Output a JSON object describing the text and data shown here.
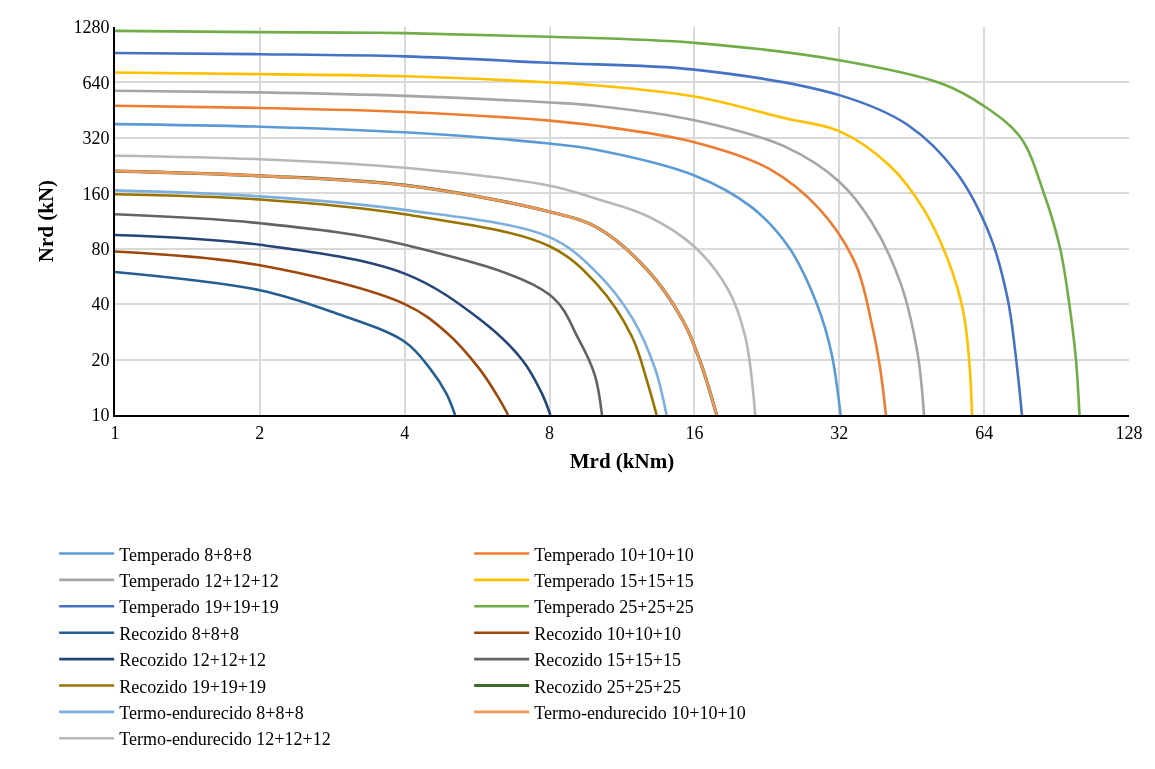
{
  "chart_data": {
    "type": "line",
    "xlabel": "Mrd (kNm)",
    "ylabel": "Nrd (kN)",
    "log": "xy",
    "grid": true,
    "legend": "bottom",
    "marker": "none",
    "line_style": "solid",
    "xlim": [
      1,
      128
    ],
    "xticks": [
      1,
      2,
      4,
      8,
      16,
      32,
      64,
      128
    ],
    "ylim": [
      10,
      1280
    ],
    "yticks": [
      10,
      20,
      40,
      80,
      160,
      320,
      640,
      1280
    ],
    "series": [
      {
        "name": "Temperado 8+8+8",
        "color": "#5b9bd5",
        "x": [
          1,
          2,
          4,
          8,
          10.05,
          16,
          21.0,
          25.2,
          28.8,
          30.8,
          32.2
        ],
        "values": [
          380,
          368,
          343,
          298,
          275,
          200,
          135,
          80.7,
          39.6,
          21.9,
          10
        ]
      },
      {
        "name": "Temperado 10+10+10",
        "color": "#ed7d31",
        "x": [
          1,
          2,
          4,
          8,
          10.05,
          16,
          22.9,
          29.2,
          34.6,
          37.4,
          38.9,
          40.0
        ],
        "values": [
          478,
          465,
          442,
          397,
          372,
          303,
          217,
          130,
          66,
          31,
          18,
          10
        ]
      },
      {
        "name": "Temperado 12+12+12",
        "color": "#a5a5a5",
        "x": [
          1,
          2,
          4,
          8,
          10.05,
          16,
          24.8,
          32,
          37.4,
          42.9,
          46.5,
          48.0
        ],
        "values": [
          577,
          565,
          541,
          498,
          477,
          399,
          285,
          185,
          111,
          52,
          21.9,
          10
        ]
      },
      {
        "name": "Temperado 15+15+15",
        "color": "#ffc000",
        "x": [
          1,
          2,
          4,
          8,
          10.05,
          16,
          24.8,
          32,
          40.8,
          48.0,
          53.9,
          57.9,
          59.6,
          60.4
        ],
        "values": [
          725,
          710,
          691,
          640,
          616,
          537,
          408,
          348,
          225,
          130,
          68.8,
          36.6,
          19.5,
          10
        ]
      },
      {
        "name": "Temperado 19+19+19",
        "color": "#4472c4",
        "x": [
          1,
          2,
          4,
          8,
          16,
          32,
          44.4,
          56.0,
          65.8,
          71.6,
          74.3,
          76.7
        ],
        "values": [
          924,
          911,
          886,
          818,
          751,
          546,
          376,
          208,
          94.5,
          42.9,
          21.9,
          10
        ]
      },
      {
        "name": "Temperado 25+25+25",
        "color": "#70ad47",
        "x": [
          1,
          2,
          4,
          8,
          16,
          32,
          52.5,
          64,
          76.2,
          85.1,
          92.0,
          96.2,
          99.3,
          101
        ],
        "values": [
          1220,
          1200,
          1185,
          1133,
          1050,
          845,
          628,
          476,
          321,
          161,
          80.9,
          40,
          20,
          10
        ]
      },
      {
        "name": "Recozido 8+8+8",
        "color": "#255e91",
        "x": [
          1,
          2,
          2.81,
          4,
          4.52,
          4.88,
          5.09
        ],
        "values": [
          59.8,
          47.6,
          36.5,
          25,
          17.8,
          13.1,
          10
        ]
      },
      {
        "name": "Recozido 10+10+10",
        "color": "#9e480e",
        "x": [
          1,
          2,
          4,
          4.89,
          5.72,
          6.29,
          6.56
        ],
        "values": [
          77.3,
          65,
          40,
          28,
          17.8,
          12.2,
          10
        ]
      },
      {
        "name": "Recozido 12+12+12",
        "color": "#264478",
        "x": [
          1,
          2,
          4,
          5.72,
          7.02,
          7.71,
          8.03
        ],
        "values": [
          95,
          84,
          58.6,
          33.2,
          19.9,
          13.1,
          10
        ]
      },
      {
        "name": "Recozido 15+15+15",
        "color": "#636363",
        "x": [
          1,
          2,
          4,
          8,
          9.18,
          9.93,
          10.28
        ],
        "values": [
          123,
          110,
          84,
          45,
          26,
          16.5,
          10
        ]
      },
      {
        "name": "Recozido 19+19+19",
        "color": "#997300",
        "x": [
          1,
          2,
          4,
          8,
          10.05,
          11.86,
          12.8,
          13.35
        ],
        "values": [
          158,
          148,
          123,
          82.5,
          51,
          26.7,
          14.8,
          10
        ]
      },
      {
        "name": "Recozido 25+25+25",
        "color": "#43682b",
        "x": [
          1,
          2,
          4,
          8,
          10.05,
          12.8,
          15.15,
          16.45,
          17.8
        ],
        "values": [
          211,
          199,
          177,
          127,
          104,
          61,
          32.5,
          19.5,
          10
        ]
      },
      {
        "name": "Termo-endurecido 8+8+8",
        "color": "#7cafdd",
        "x": [
          1,
          2,
          4,
          8,
          10.05,
          11.86,
          13.24,
          14.0
        ],
        "values": [
          166,
          154,
          130,
          92.5,
          59,
          33.9,
          18,
          10
        ]
      },
      {
        "name": "Termo-endurecido 10+10+10",
        "color": "#f1975a",
        "x": [
          1,
          2,
          4,
          8,
          10.05,
          12.8,
          15.15,
          16.45,
          17.8
        ],
        "values": [
          211,
          199,
          177,
          127,
          104,
          61,
          32.5,
          19.5,
          10
        ]
      },
      {
        "name": "Termo-endurecido 12+12+12",
        "color": "#b7b7b7",
        "x": [
          1,
          2,
          4,
          8,
          10.05,
          12.8,
          16,
          18.8,
          20.4,
          21.4
        ],
        "values": [
          256,
          245,
          220,
          176,
          149,
          120,
          82,
          48,
          26.7,
          10
        ]
      }
    ]
  }
}
